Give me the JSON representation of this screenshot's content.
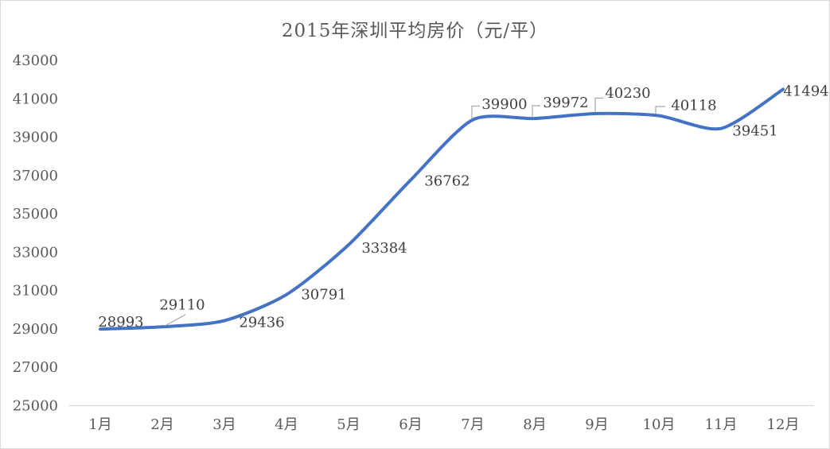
{
  "chart_data": {
    "type": "line",
    "title": "2015年深圳平均房价（元/平）",
    "categories": [
      "1月",
      "2月",
      "3月",
      "4月",
      "5月",
      "6月",
      "7月",
      "8月",
      "9月",
      "10月",
      "11月",
      "12月"
    ],
    "values": [
      28993,
      29110,
      29436,
      30791,
      33384,
      36762,
      39900,
      39972,
      40230,
      40118,
      39451,
      41494
    ],
    "data_labels": [
      "28993",
      "29110",
      "29436",
      "30791",
      "33384",
      "36762",
      "39900",
      "39972",
      "40230",
      "40118",
      "39451",
      "41494"
    ],
    "xlabel": "",
    "ylabel": "",
    "ylim": [
      25000,
      43000
    ],
    "ytick_step": 2000,
    "yticks": [
      25000,
      27000,
      29000,
      31000,
      33000,
      35000,
      37000,
      39000,
      41000,
      43000
    ],
    "grid": false,
    "legend": "none",
    "smoothed_line": true,
    "colors": {
      "line": "#4472C4",
      "title_text": "#595959",
      "axis_text": "#595959",
      "data_label_text": "#404040",
      "axis_line": "#D9D9D9",
      "leader_line": "#A6A6A6",
      "background": "#FFFFFF",
      "border": "#D9D9D9"
    }
  }
}
